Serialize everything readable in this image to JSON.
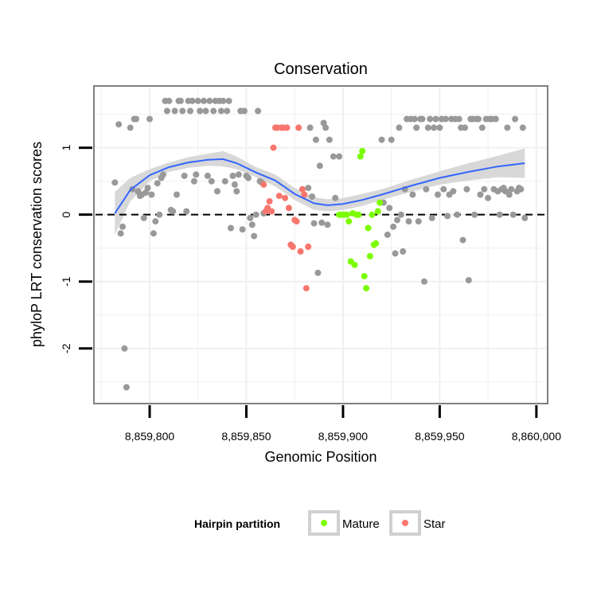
{
  "chart_data": {
    "type": "scatter",
    "title": "Conservation",
    "xlabel": "Genomic Position",
    "ylabel": "phyloP LRT conservation scores",
    "xlim": [
      8859772,
      8860005
    ],
    "ylim": [
      -2.8,
      1.9
    ],
    "grid": true,
    "reference_line": {
      "y": 0,
      "style": "dashed"
    },
    "x_ticks": [
      {
        "value": 8859800,
        "label": "8,859,800"
      },
      {
        "value": 8859850,
        "label": "8,859,850"
      },
      {
        "value": 8859900,
        "label": "8,859,900"
      },
      {
        "value": 8859950,
        "label": "8,859,950"
      },
      {
        "value": 8860000,
        "label": "8,860,000"
      }
    ],
    "y_ticks": [
      {
        "value": -2,
        "label": "-2"
      },
      {
        "value": -1,
        "label": "-1"
      },
      {
        "value": 0,
        "label": "0"
      },
      {
        "value": 1,
        "label": "1"
      }
    ],
    "legend": {
      "title": "Hairpin partition",
      "position": "bottom",
      "entries": [
        {
          "name": "Mature",
          "color": "#7cfc00"
        },
        {
          "name": "Star",
          "color": "#f8766d"
        }
      ]
    },
    "colors": {
      "other": "#999999",
      "smooth": "#3366ff",
      "band": "#d4d4d4"
    },
    "smooth": {
      "x": [
        8859782,
        8859790,
        8859800,
        8859810,
        8859820,
        8859830,
        8859838,
        8859845,
        8859855,
        8859865,
        8859875,
        8859885,
        8859892,
        8859900,
        8859910,
        8859920,
        8859935,
        8859950,
        8859965,
        8859980,
        8859994
      ],
      "y": [
        0.02,
        0.37,
        0.59,
        0.71,
        0.78,
        0.82,
        0.83,
        0.77,
        0.63,
        0.51,
        0.31,
        0.17,
        0.14,
        0.16,
        0.22,
        0.3,
        0.43,
        0.55,
        0.64,
        0.72,
        0.77
      ],
      "lower": [
        -0.3,
        0.2,
        0.5,
        0.64,
        0.7,
        0.73,
        0.72,
        0.68,
        0.56,
        0.42,
        0.22,
        0.07,
        0.05,
        0.07,
        0.13,
        0.22,
        0.34,
        0.45,
        0.51,
        0.56,
        0.55
      ],
      "upper": [
        0.34,
        0.55,
        0.68,
        0.78,
        0.86,
        0.91,
        0.95,
        0.87,
        0.71,
        0.6,
        0.4,
        0.26,
        0.23,
        0.25,
        0.31,
        0.38,
        0.52,
        0.65,
        0.77,
        0.88,
        0.99
      ]
    },
    "series": [
      {
        "name": "Other",
        "color": "#999999",
        "points": [
          [
            8859782,
            0.48
          ],
          [
            8859784,
            1.35
          ],
          [
            8859785,
            -0.28
          ],
          [
            8859786,
            -0.18
          ],
          [
            8859787,
            -2.0
          ],
          [
            8859788,
            -2.58
          ],
          [
            8859790,
            1.3
          ],
          [
            8859791,
            0.38
          ],
          [
            8859792,
            1.43
          ],
          [
            8859793,
            1.43
          ],
          [
            8859794,
            0.35
          ],
          [
            8859795,
            0.28
          ],
          [
            8859796,
            0.3
          ],
          [
            8859797,
            -0.05
          ],
          [
            8859798,
            0.33
          ],
          [
            8859799,
            0.4
          ],
          [
            8859800,
            1.43
          ],
          [
            8859801,
            0.3
          ],
          [
            8859802,
            -0.28
          ],
          [
            8859803,
            -0.1
          ],
          [
            8859804,
            0.47
          ],
          [
            8859805,
            0.0
          ],
          [
            8859806,
            0.55
          ],
          [
            8859807,
            0.6
          ],
          [
            8859808,
            1.7
          ],
          [
            8859809,
            1.55
          ],
          [
            8859810,
            1.7
          ],
          [
            8859811,
            0.07
          ],
          [
            8859812,
            0.05
          ],
          [
            8859813,
            1.55
          ],
          [
            8859814,
            0.3
          ],
          [
            8859815,
            1.7
          ],
          [
            8859816,
            1.7
          ],
          [
            8859817,
            1.55
          ],
          [
            8859818,
            0.58
          ],
          [
            8859819,
            0.05
          ],
          [
            8859820,
            1.7
          ],
          [
            8859821,
            1.55
          ],
          [
            8859822,
            1.7
          ],
          [
            8859823,
            0.5
          ],
          [
            8859824,
            0.6
          ],
          [
            8859825,
            1.7
          ],
          [
            8859826,
            1.55
          ],
          [
            8859828,
            1.7
          ],
          [
            8859829,
            1.55
          ],
          [
            8859830,
            0.58
          ],
          [
            8859831,
            1.7
          ],
          [
            8859832,
            0.5
          ],
          [
            8859833,
            1.55
          ],
          [
            8859834,
            1.7
          ],
          [
            8859835,
            0.35
          ],
          [
            8859836,
            1.7
          ],
          [
            8859837,
            1.55
          ],
          [
            8859838,
            1.7
          ],
          [
            8859839,
            0.5
          ],
          [
            8859840,
            1.55
          ],
          [
            8859841,
            1.7
          ],
          [
            8859842,
            -0.2
          ],
          [
            8859843,
            0.58
          ],
          [
            8859844,
            0.45
          ],
          [
            8859845,
            0.35
          ],
          [
            8859846,
            0.6
          ],
          [
            8859847,
            1.55
          ],
          [
            8859848,
            -0.22
          ],
          [
            8859849,
            1.55
          ],
          [
            8859850,
            0.58
          ],
          [
            8859851,
            0.55
          ],
          [
            8859852,
            -0.05
          ],
          [
            8859853,
            -0.15
          ],
          [
            8859854,
            -0.32
          ],
          [
            8859855,
            0.0
          ],
          [
            8859856,
            1.55
          ],
          [
            8859857,
            0.5
          ],
          [
            8859858,
            0.48
          ],
          [
            8859859,
            0.02
          ],
          [
            8859882,
            0.4
          ],
          [
            8859883,
            1.3
          ],
          [
            8859884,
            0.27
          ],
          [
            8859885,
            -0.13
          ],
          [
            8859886,
            1.12
          ],
          [
            8859887,
            -0.87
          ],
          [
            8859888,
            0.73
          ],
          [
            8859889,
            -0.12
          ],
          [
            8859890,
            1.37
          ],
          [
            8859891,
            1.3
          ],
          [
            8859892,
            -0.15
          ],
          [
            8859893,
            1.12
          ],
          [
            8859895,
            0.87
          ],
          [
            8859896,
            0.25
          ],
          [
            8859898,
            0.87
          ],
          [
            8859920,
            1.12
          ],
          [
            8859921,
            0.18
          ],
          [
            8859923,
            -0.3
          ],
          [
            8859924,
            0.1
          ],
          [
            8859925,
            1.12
          ],
          [
            8859926,
            -0.18
          ],
          [
            8859927,
            -0.58
          ],
          [
            8859928,
            -0.08
          ],
          [
            8859929,
            1.3
          ],
          [
            8859930,
            0.0
          ],
          [
            8859931,
            -0.55
          ],
          [
            8859932,
            0.38
          ],
          [
            8859933,
            1.43
          ],
          [
            8859934,
            -0.1
          ],
          [
            8859935,
            1.43
          ],
          [
            8859936,
            0.3
          ],
          [
            8859937,
            1.43
          ],
          [
            8859938,
            1.3
          ],
          [
            8859939,
            -0.1
          ],
          [
            8859940,
            1.43
          ],
          [
            8859941,
            1.43
          ],
          [
            8859942,
            -1.0
          ],
          [
            8859943,
            0.38
          ],
          [
            8859944,
            1.3
          ],
          [
            8859945,
            1.43
          ],
          [
            8859946,
            -0.05
          ],
          [
            8859947,
            1.3
          ],
          [
            8859948,
            1.43
          ],
          [
            8859949,
            0.3
          ],
          [
            8859950,
            1.3
          ],
          [
            8859951,
            1.43
          ],
          [
            8859952,
            0.38
          ],
          [
            8859953,
            1.43
          ],
          [
            8859954,
            -0.02
          ],
          [
            8859955,
            0.3
          ],
          [
            8859956,
            1.43
          ],
          [
            8859957,
            0.35
          ],
          [
            8859958,
            1.43
          ],
          [
            8859959,
            0.0
          ],
          [
            8859960,
            1.43
          ],
          [
            8859961,
            1.3
          ],
          [
            8859962,
            -0.38
          ],
          [
            8859963,
            1.3
          ],
          [
            8859964,
            0.38
          ],
          [
            8859965,
            -0.98
          ],
          [
            8859966,
            1.43
          ],
          [
            8859967,
            1.43
          ],
          [
            8859968,
            0.0
          ],
          [
            8859969,
            1.43
          ],
          [
            8859970,
            1.43
          ],
          [
            8859971,
            0.3
          ],
          [
            8859972,
            1.3
          ],
          [
            8859973,
            0.38
          ],
          [
            8859974,
            1.43
          ],
          [
            8859975,
            0.25
          ],
          [
            8859976,
            1.43
          ],
          [
            8859977,
            1.43
          ],
          [
            8859978,
            0.38
          ],
          [
            8859979,
            1.43
          ],
          [
            8859980,
            0.35
          ],
          [
            8859981,
            0.0
          ],
          [
            8859982,
            0.38
          ],
          [
            8859983,
            0.4
          ],
          [
            8859984,
            0.35
          ],
          [
            8859985,
            1.3
          ],
          [
            8859986,
            0.3
          ],
          [
            8859987,
            0.38
          ],
          [
            8859988,
            0.0
          ],
          [
            8859989,
            1.43
          ],
          [
            8859990,
            0.35
          ],
          [
            8859991,
            0.4
          ],
          [
            8859992,
            0.38
          ],
          [
            8859993,
            1.3
          ],
          [
            8859994,
            -0.05
          ]
        ]
      },
      {
        "name": "Mature",
        "color": "#7cfc00",
        "points": [
          [
            8859898,
            0.0
          ],
          [
            8859899,
            0.0
          ],
          [
            8859900,
            0.0
          ],
          [
            8859901,
            0.0
          ],
          [
            8859902,
            0.0
          ],
          [
            8859903,
            -0.1
          ],
          [
            8859904,
            -0.7
          ],
          [
            8859905,
            0.02
          ],
          [
            8859906,
            -0.75
          ],
          [
            8859907,
            0.0
          ],
          [
            8859908,
            0.0
          ],
          [
            8859909,
            0.87
          ],
          [
            8859910,
            0.95
          ],
          [
            8859911,
            -0.92
          ],
          [
            8859912,
            -1.1
          ],
          [
            8859913,
            -0.2
          ],
          [
            8859914,
            -0.62
          ],
          [
            8859915,
            0.0
          ],
          [
            8859916,
            -0.45
          ],
          [
            8859917,
            -0.43
          ],
          [
            8859918,
            0.05
          ],
          [
            8859919,
            0.18
          ]
        ]
      },
      {
        "name": "Star",
        "color": "#f8766d",
        "points": [
          [
            8859859,
            0.45
          ],
          [
            8859860,
            0.05
          ],
          [
            8859861,
            0.1
          ],
          [
            8859862,
            0.2
          ],
          [
            8859863,
            0.05
          ],
          [
            8859864,
            1.0
          ],
          [
            8859865,
            1.3
          ],
          [
            8859866,
            1.3
          ],
          [
            8859867,
            0.28
          ],
          [
            8859868,
            1.3
          ],
          [
            8859869,
            1.3
          ],
          [
            8859870,
            0.25
          ],
          [
            8859871,
            1.3
          ],
          [
            8859872,
            0.1
          ],
          [
            8859873,
            -0.45
          ],
          [
            8859874,
            -0.48
          ],
          [
            8859875,
            -0.08
          ],
          [
            8859876,
            -0.1
          ],
          [
            8859877,
            1.3
          ],
          [
            8859878,
            -0.55
          ],
          [
            8859879,
            0.38
          ],
          [
            8859880,
            0.3
          ],
          [
            8859881,
            -1.1
          ],
          [
            8859882,
            -0.48
          ]
        ]
      }
    ]
  }
}
